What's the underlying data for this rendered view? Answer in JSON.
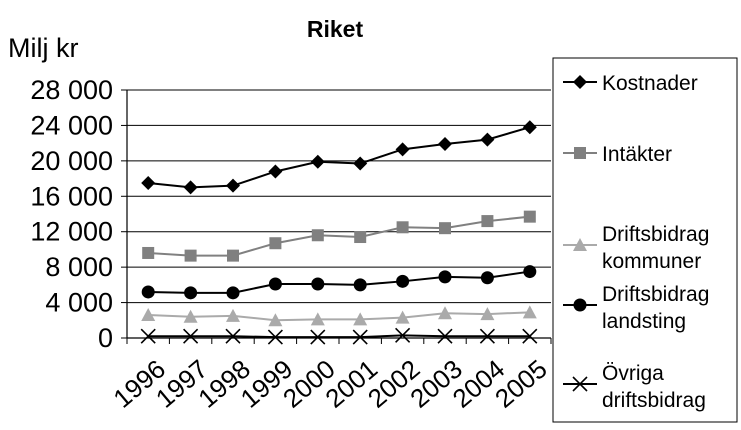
{
  "chart_data": {
    "type": "line",
    "title": "Riket",
    "ylabel": "Milj kr",
    "xlabel": "",
    "ylim": [
      0,
      28000
    ],
    "yticks": [
      0,
      4000,
      8000,
      12000,
      16000,
      20000,
      24000,
      28000
    ],
    "ytick_labels": [
      "0",
      "4 000",
      "8 000",
      "12 000",
      "16 000",
      "20 000",
      "24 000",
      "28 000"
    ],
    "categories": [
      "1996",
      "1997",
      "1998",
      "1999",
      "2000",
      "2001",
      "2002",
      "2003",
      "2004",
      "2005"
    ],
    "grid": true,
    "legend_position": "right",
    "series": [
      {
        "name": "Kostnader",
        "marker": "diamond",
        "color": "#000000",
        "values": [
          17500,
          17000,
          17200,
          18800,
          19900,
          19700,
          21300,
          21900,
          22400,
          23800
        ]
      },
      {
        "name": "Intäkter",
        "marker": "square",
        "color": "#808080",
        "values": [
          9600,
          9300,
          9300,
          10700,
          11600,
          11400,
          12500,
          12400,
          13200,
          13700
        ]
      },
      {
        "name": "Driftsbidrag kommuner",
        "marker": "triangle",
        "color": "#aaaaaa",
        "values": [
          2600,
          2400,
          2500,
          2000,
          2100,
          2100,
          2300,
          2800,
          2700,
          2900
        ]
      },
      {
        "name": "Driftsbidrag landsting",
        "marker": "circle",
        "color": "#000000",
        "values": [
          5200,
          5100,
          5100,
          6100,
          6100,
          6000,
          6400,
          6900,
          6800,
          7500
        ]
      },
      {
        "name": "Övriga driftsbidrag",
        "marker": "x",
        "color": "#000000",
        "values": [
          200,
          200,
          200,
          100,
          100,
          100,
          300,
          200,
          200,
          200
        ]
      }
    ],
    "legend_lines": [
      [
        "Kostnader"
      ],
      [
        "Intäkter"
      ],
      [
        "Driftsbidrag",
        "kommuner"
      ],
      [
        "Driftsbidrag",
        "landsting"
      ],
      [
        "Övriga",
        "driftsbidrag"
      ]
    ]
  }
}
